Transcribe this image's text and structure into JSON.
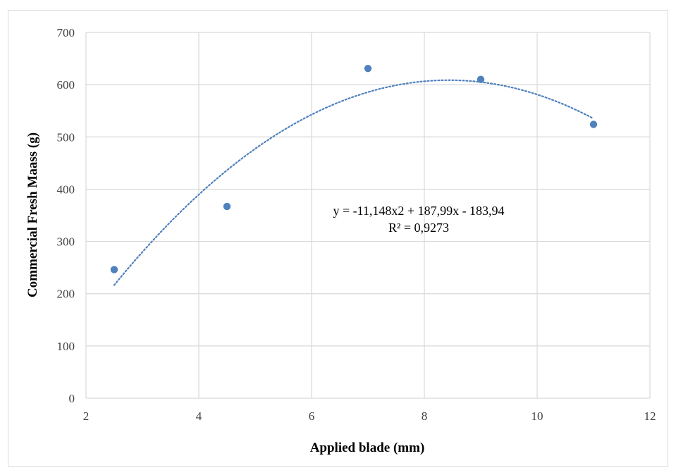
{
  "chart_data": {
    "type": "scatter",
    "title": "",
    "xlabel": "Applied blade (mm)",
    "ylabel": "Commercial Fresh Maass (g)",
    "xlim": [
      2,
      12
    ],
    "ylim": [
      0,
      700
    ],
    "xticks": [
      2,
      4,
      6,
      8,
      10,
      12
    ],
    "yticks": [
      0,
      100,
      200,
      300,
      400,
      500,
      600,
      700
    ],
    "grid": true,
    "legend": "none",
    "marker_color": "#4f81bd",
    "trend_color": "#4f81bd",
    "points": [
      {
        "x": 2.5,
        "y": 246
      },
      {
        "x": 4.5,
        "y": 367
      },
      {
        "x": 7,
        "y": 631
      },
      {
        "x": 9,
        "y": 610
      },
      {
        "x": 11,
        "y": 524
      }
    ],
    "trendline": {
      "type": "polynomial",
      "order": 2,
      "coefficients": {
        "a": -11.148,
        "b": 187.99,
        "c": -183.94
      },
      "x_range": [
        2.5,
        11
      ],
      "style": "dotted",
      "equation_text": "y = -11,148x2 + 187,99x - 183,94",
      "r2_text": "R² = 0,9273"
    }
  }
}
